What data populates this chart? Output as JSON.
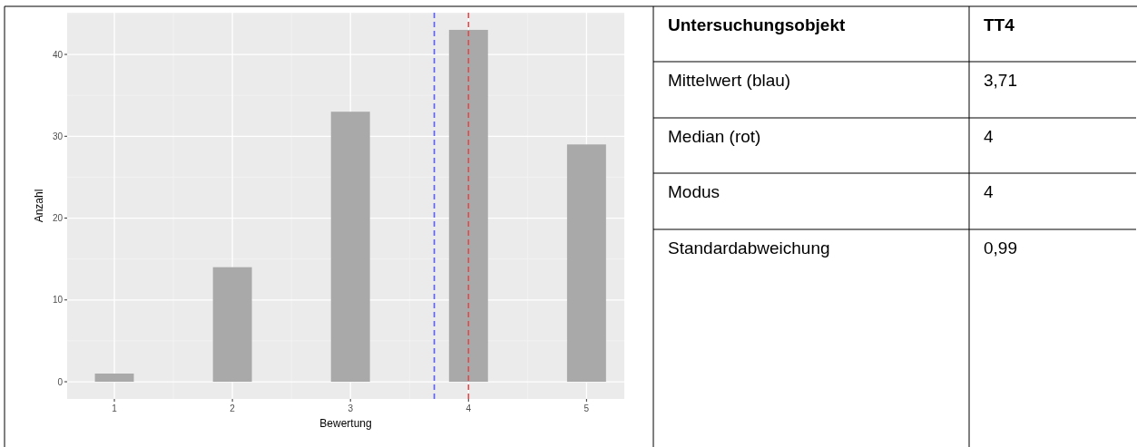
{
  "chart_data": [
    {
      "type": "bar",
      "xlabel": "Bewertung",
      "ylabel": "Anzahl",
      "x": [
        1,
        2,
        3,
        4,
        5
      ],
      "series": [
        {
          "color": "#a9a9a9",
          "values": [
            1,
            14,
            33,
            43,
            29
          ]
        }
      ],
      "xlim": [
        0.6,
        5.32
      ],
      "xticks": [
        1,
        2,
        3,
        4,
        5
      ],
      "ylim": [
        -2.1,
        45.1
      ],
      "yticks": [
        0,
        10,
        20,
        30,
        40
      ],
      "grid": true,
      "ref_lines": [
        {
          "axis": "x",
          "value": 3.71,
          "color": "#5b5bff",
          "line_style": "dashed"
        },
        {
          "axis": "x",
          "value": 4,
          "color": "#e04a4a",
          "line_style": "dashed"
        }
      ]
    },
    {
      "type": "other",
      "annotations": [
        "Untersuchungsobjekt",
        "TT4",
        "Mittelwert (blau)",
        "3,71",
        "Median (rot)",
        "4",
        "Modus",
        "4",
        "Standardabweichung",
        "0,99"
      ]
    }
  ]
}
